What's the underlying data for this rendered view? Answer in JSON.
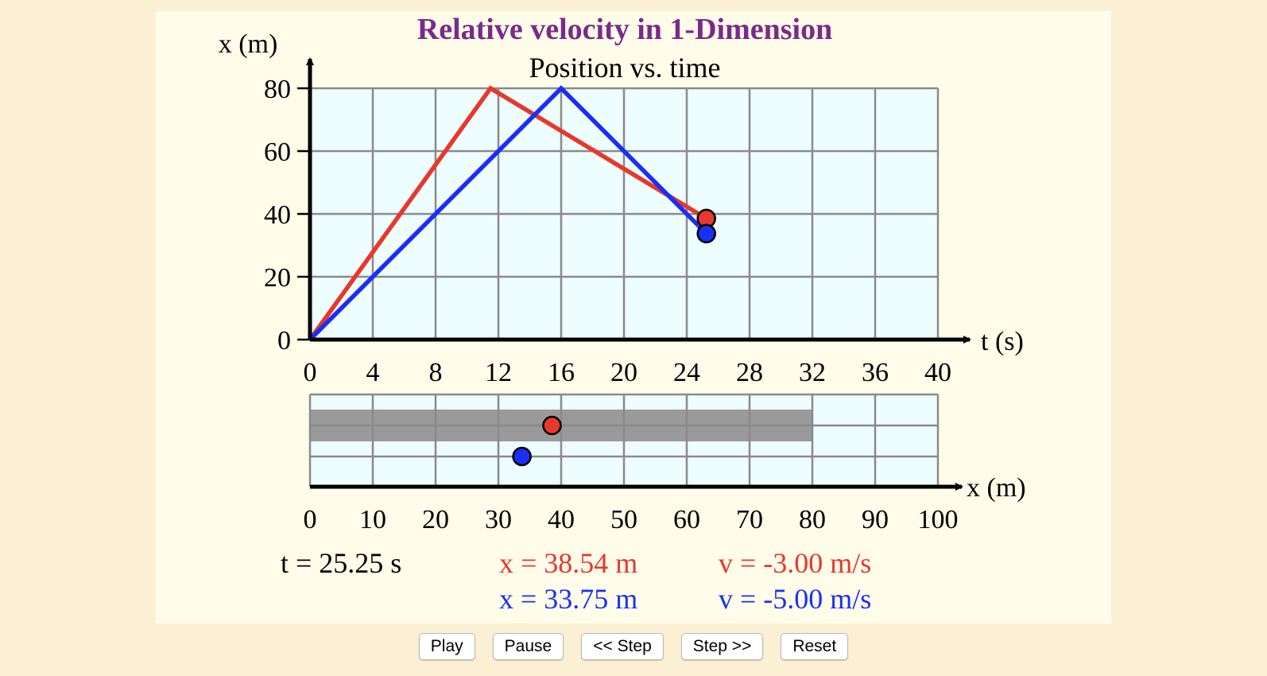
{
  "title": "Relative velocity in 1-Dimension",
  "graph": {
    "subtitle": "Position vs. time",
    "y_axis_label": "x (m)",
    "x_axis_label": "t (s)",
    "y_ticks": [
      "0",
      "20",
      "40",
      "60",
      "80"
    ],
    "x_ticks": [
      "0",
      "4",
      "8",
      "12",
      "16",
      "20",
      "24",
      "28",
      "32",
      "36",
      "40"
    ]
  },
  "track": {
    "axis_label": "x (m)",
    "ticks": [
      "0",
      "10",
      "20",
      "30",
      "40",
      "50",
      "60",
      "70",
      "80",
      "90",
      "100"
    ]
  },
  "readouts": {
    "time": "t = 25.25 s",
    "red_position": "x = 38.54 m",
    "red_velocity": "v = -3.00 m/s",
    "blue_position": "x = 33.75 m",
    "blue_velocity": "v = -5.00 m/s"
  },
  "colors": {
    "red": "#e8372c",
    "blue": "#1a2ff5",
    "title": "#7b2a8a",
    "grid_bg": "#eefdfe",
    "road": "#9a9a9a"
  },
  "chart_data": {
    "type": "line",
    "title": "Position vs. time",
    "xlabel": "t (s)",
    "ylabel": "x (m)",
    "xlim": [
      0,
      40
    ],
    "ylim": [
      0,
      80
    ],
    "grid": true,
    "series": [
      {
        "color": "#e8372c",
        "x": [
          0,
          11.5,
          25.25
        ],
        "y": [
          0,
          80,
          38.54
        ]
      },
      {
        "color": "#1a2ff5",
        "x": [
          0,
          16,
          25.25
        ],
        "y": [
          0,
          80,
          33.75
        ]
      }
    ],
    "current_time": 25.25,
    "current_positions": [
      38.54,
      33.75
    ],
    "road_end_m": 80
  },
  "buttons": {
    "play": "Play",
    "pause": "Pause",
    "step_back": "<< Step",
    "step_forward": "Step >>",
    "reset": "Reset"
  }
}
